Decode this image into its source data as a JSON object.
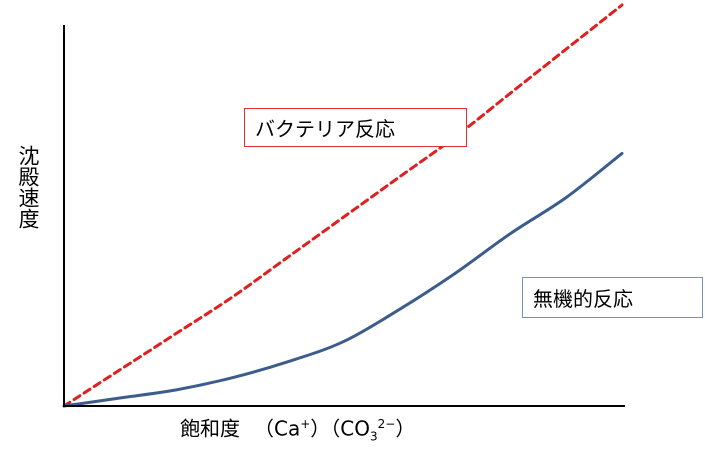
{
  "chart_data": {
    "type": "line",
    "title": "",
    "ylabel": "沈殿速度",
    "xlabel": {
      "main": "飽和度",
      "term1": {
        "open": "（Ca",
        "sup": "+",
        "close": "）"
      },
      "term2": {
        "open": "（CO",
        "sub": "3",
        "sup": "2−",
        "close": "）"
      }
    },
    "xlim": [
      0,
      100
    ],
    "ylim": [
      0,
      100
    ],
    "grid": false,
    "legend": "none",
    "series": [
      {
        "name": "バクテリア反応",
        "style": "dashed",
        "color": "#e02020",
        "x": [
          0,
          10,
          20,
          30,
          40,
          50,
          60,
          70,
          80,
          90,
          100
        ],
        "y": [
          0,
          9,
          18,
          27,
          37,
          47,
          57,
          67,
          78,
          89,
          100
        ]
      },
      {
        "name": "無機的反応",
        "style": "solid",
        "color": "#3c5d8c",
        "x": [
          0,
          10,
          20,
          30,
          40,
          50,
          60,
          70,
          80,
          90,
          100
        ],
        "y": [
          0,
          2,
          4,
          7,
          11,
          16,
          24,
          33,
          43,
          52,
          63
        ]
      }
    ]
  }
}
